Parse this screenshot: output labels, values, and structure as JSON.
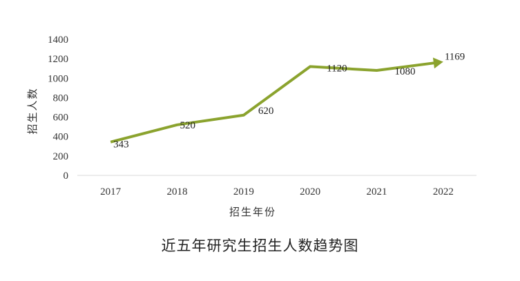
{
  "chart_data": {
    "type": "line",
    "title": "近五年研究生招生人数趋势图",
    "xlabel": "招生年份",
    "ylabel": "招生人数",
    "categories": [
      "2017",
      "2018",
      "2019",
      "2020",
      "2021",
      "2022"
    ],
    "values": [
      343,
      520,
      620,
      1120,
      1080,
      1169
    ],
    "data_labels": [
      "343",
      "520",
      "620",
      "1120",
      "1080",
      "1169"
    ],
    "yticks": [
      "0",
      "200",
      "400",
      "600",
      "800",
      "1000",
      "1200",
      "1400"
    ],
    "ylim": [
      0,
      1400
    ],
    "grid": false,
    "legend": "none",
    "line_color": "#8BA32E",
    "arrow_end": true
  }
}
